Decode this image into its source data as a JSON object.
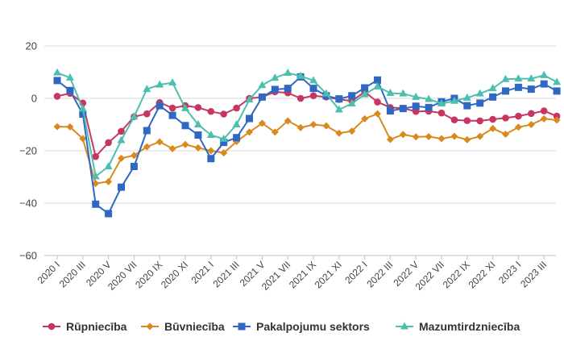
{
  "chart_data": {
    "type": "line",
    "title": "",
    "xlabel": "",
    "ylabel": "",
    "ylim": [
      -60,
      20
    ],
    "yticks": [
      20,
      0,
      -20,
      -40,
      -60
    ],
    "grid": "horizontal",
    "legend_position": "bottom",
    "x_labels_shown": [
      "2020 I",
      "2020 III",
      "2020 V",
      "2020 VII",
      "2020 IX",
      "2020 XI",
      "2021 I",
      "2021 III",
      "2021 V",
      "2021 VII",
      "2021 IX",
      "2021 XI",
      "2022 I",
      "2022 III",
      "2022 V",
      "2022 VII",
      "2022 IX",
      "2022 XI",
      "2023 I",
      "2023 III"
    ],
    "x": [
      "2020 I",
      "2020 II",
      "2020 III",
      "2020 IV",
      "2020 V",
      "2020 VI",
      "2020 VII",
      "2020 VIII",
      "2020 IX",
      "2020 X",
      "2020 XI",
      "2020 XII",
      "2021 I",
      "2021 II",
      "2021 III",
      "2021 IV",
      "2021 V",
      "2021 VI",
      "2021 VII",
      "2021 VIII",
      "2021 IX",
      "2021 X",
      "2021 XI",
      "2021 XII",
      "2022 I",
      "2022 II",
      "2022 III",
      "2022 IV",
      "2022 V",
      "2022 VI",
      "2022 VII",
      "2022 VIII",
      "2022 IX",
      "2022 X",
      "2022 XI",
      "2022 XII",
      "2023 I",
      "2023 II",
      "2023 III",
      "2023 IV"
    ],
    "series": [
      {
        "name": "Rūpniecība",
        "color": "#c8365f",
        "marker": "circle",
        "values": [
          0.8,
          1.9,
          -1.8,
          -22.2,
          -16.9,
          -12.6,
          -7.0,
          -5.9,
          -1.6,
          -3.7,
          -2.8,
          -3.5,
          -5.0,
          -6.0,
          -3.7,
          0.0,
          0.5,
          2.5,
          2.1,
          0.0,
          1.0,
          0.5,
          -0.4,
          -1.0,
          2.5,
          -1.4,
          -3.5,
          -3.8,
          -5.0,
          -4.9,
          -5.6,
          -8.2,
          -8.5,
          -8.6,
          -8.0,
          -7.5,
          -6.8,
          -5.8,
          -4.8,
          -6.8
        ]
      },
      {
        "name": "Būvniecība",
        "color": "#d98a1e",
        "marker": "diamond",
        "values": [
          -10.8,
          -10.9,
          -15.4,
          -32.5,
          -31.8,
          -22.9,
          -21.8,
          -18.5,
          -16.6,
          -19.2,
          -17.6,
          -18.9,
          -20.0,
          -20.8,
          -16.5,
          -12.9,
          -9.5,
          -12.9,
          -8.6,
          -11.2,
          -10.0,
          -10.5,
          -13.3,
          -12.5,
          -7.8,
          -5.9,
          -15.7,
          -13.8,
          -14.7,
          -14.6,
          -15.4,
          -14.5,
          -15.8,
          -14.5,
          -11.5,
          -13.7,
          -11.0,
          -10.0,
          -7.8,
          -8.3
        ]
      },
      {
        "name": "Pakalpojumu sektors",
        "color": "#2f67c2",
        "marker": "square",
        "values": [
          6.8,
          3.0,
          -6.0,
          -40.4,
          -44.0,
          -33.9,
          -26.0,
          -12.3,
          -2.8,
          -6.5,
          -10.4,
          -14.0,
          -23.0,
          -16.8,
          -15.0,
          -7.7,
          0.5,
          3.4,
          3.8,
          8.2,
          3.8,
          1.0,
          -0.2,
          1.0,
          4.0,
          7.0,
          -4.8,
          -3.9,
          -3.0,
          -3.5,
          -1.3,
          0.0,
          -2.8,
          -1.8,
          0.5,
          2.8,
          4.2,
          3.5,
          5.5,
          2.8
        ]
      },
      {
        "name": "Mazumtirdzniecība",
        "color": "#4cbfae",
        "marker": "triangle",
        "values": [
          9.8,
          7.9,
          -4.0,
          -29.8,
          -26.0,
          -16.0,
          -7.0,
          3.5,
          5.2,
          6.0,
          -3.8,
          -10.0,
          -14.0,
          -15.5,
          -10.0,
          -0.5,
          5.0,
          7.8,
          9.7,
          8.5,
          6.8,
          1.8,
          -4.3,
          -2.0,
          1.5,
          4.5,
          2.0,
          1.8,
          0.5,
          -0.3,
          -2.0,
          -1.0,
          0.2,
          1.8,
          3.8,
          7.3,
          7.5,
          7.5,
          8.8,
          6.2
        ]
      }
    ]
  }
}
